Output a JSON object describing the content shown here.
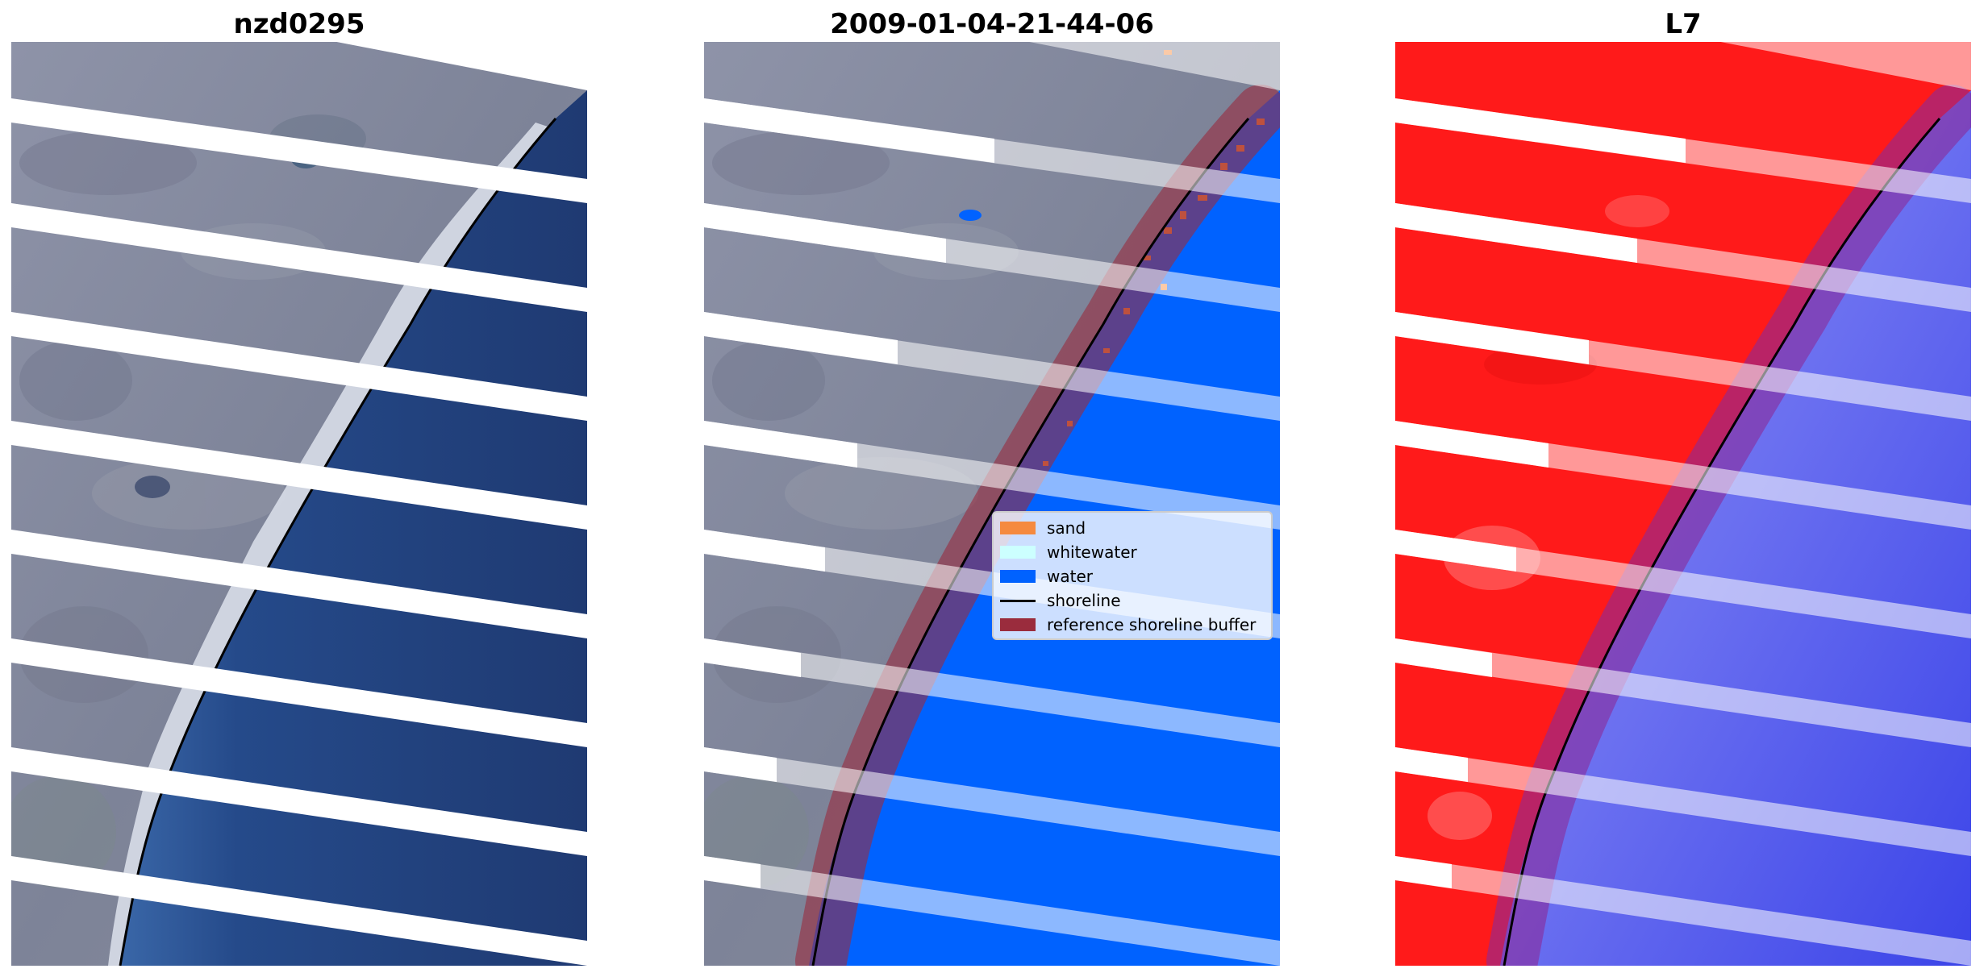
{
  "panels": [
    {
      "title": "nzd0295"
    },
    {
      "title": "2009-01-04-21-44-06"
    },
    {
      "title": "L7"
    }
  ],
  "legend": {
    "items": [
      {
        "label": "sand",
        "kind": "patch",
        "color": "#f58a3f"
      },
      {
        "label": "whitewater",
        "kind": "patch",
        "color": "#ccffff"
      },
      {
        "label": "water",
        "kind": "patch",
        "color": "#0062ff"
      },
      {
        "label": "shoreline",
        "kind": "line",
        "color": "#000000"
      },
      {
        "label": "reference shoreline buffer",
        "kind": "patch",
        "color": "#9a2c3d"
      }
    ]
  },
  "colors": {
    "land_rgb": "#8a8fa3",
    "sea_rgb": "#22407a",
    "classified_water": "#0062ff",
    "mndwi_land": "#ff1a1a",
    "mndwi_water": "#6a6ff0",
    "buffer": "#9a2c3d",
    "scanline_gap": "#ffffff"
  }
}
